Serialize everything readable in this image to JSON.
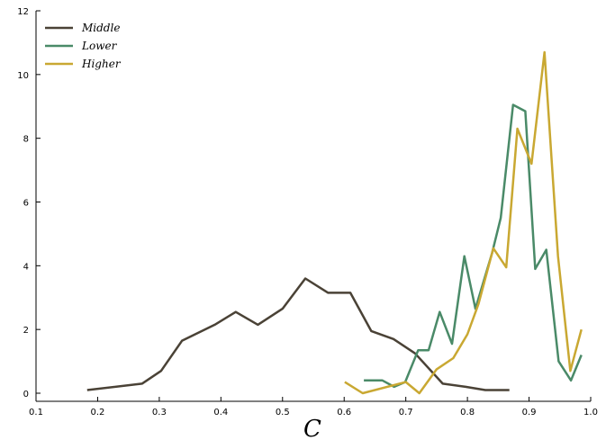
{
  "chart_data": {
    "type": "line",
    "xlabel": "C",
    "ylabel": "",
    "xlim": [
      0.1,
      1.0
    ],
    "ylim": [
      0,
      12
    ],
    "x_ticks": [
      "0.1",
      "0.2",
      "0.3",
      "0.4",
      "0.5",
      "0.6",
      "0.7",
      "0.8",
      "0.9",
      "1.0"
    ],
    "y_ticks": [
      "0",
      "2",
      "4",
      "6",
      "8",
      "10",
      "12"
    ],
    "grid": false,
    "legend_position": "top-left",
    "series": [
      {
        "name": "Middle",
        "color": "#4a4236",
        "x": [
          0.183,
          0.272,
          0.303,
          0.337,
          0.39,
          0.424,
          0.46,
          0.5,
          0.537,
          0.574,
          0.61,
          0.644,
          0.68,
          0.715,
          0.76,
          0.797,
          0.829,
          0.868
        ],
        "y": [
          0.1,
          0.3,
          0.7,
          1.65,
          2.15,
          2.55,
          2.15,
          2.65,
          3.6,
          3.15,
          3.15,
          1.95,
          1.7,
          1.25,
          0.3,
          0.2,
          0.1,
          0.1
        ]
      },
      {
        "name": "Lower",
        "color": "#4a8a68",
        "x": [
          0.632,
          0.662,
          0.681,
          0.699,
          0.72,
          0.737,
          0.755,
          0.775,
          0.795,
          0.813,
          0.84,
          0.854,
          0.874,
          0.894,
          0.91,
          0.928,
          0.948,
          0.968,
          0.985
        ],
        "y": [
          0.4,
          0.4,
          0.2,
          0.35,
          1.35,
          1.35,
          2.55,
          1.55,
          4.3,
          2.65,
          4.4,
          5.5,
          9.05,
          8.85,
          3.9,
          4.5,
          1.0,
          0.4,
          1.2
        ]
      },
      {
        "name": "Higher",
        "color": "#c9a832",
        "x": [
          0.601,
          0.63,
          0.7,
          0.722,
          0.75,
          0.777,
          0.8,
          0.818,
          0.842,
          0.863,
          0.881,
          0.904,
          0.925,
          0.947,
          0.967,
          0.985
        ],
        "y": [
          0.35,
          0.0,
          0.35,
          0.0,
          0.75,
          1.1,
          1.85,
          2.8,
          4.55,
          3.95,
          8.3,
          7.2,
          10.7,
          4.3,
          0.7,
          2.0
        ]
      }
    ]
  }
}
